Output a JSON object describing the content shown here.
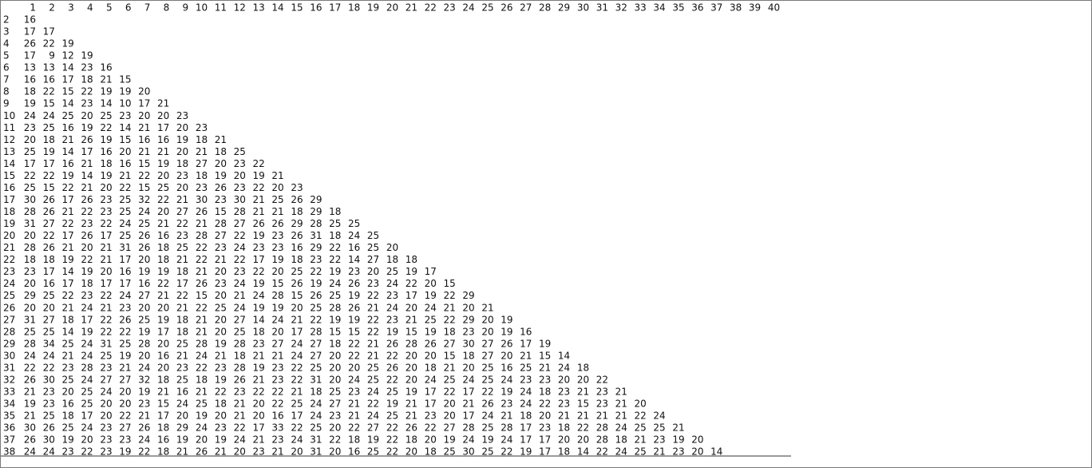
{
  "header": [
    1,
    2,
    3,
    4,
    5,
    6,
    7,
    8,
    9,
    10,
    11,
    12,
    13,
    14,
    15,
    16,
    17,
    18,
    19,
    20,
    21,
    22,
    23,
    24,
    25,
    26,
    27,
    28,
    29,
    30,
    31,
    32,
    33,
    34,
    35,
    36,
    37,
    38,
    39,
    40
  ],
  "rows": [
    {
      "label": 2,
      "values": [
        16
      ]
    },
    {
      "label": 3,
      "values": [
        17,
        17
      ]
    },
    {
      "label": 4,
      "values": [
        26,
        22,
        19
      ]
    },
    {
      "label": 5,
      "values": [
        17,
        9,
        12,
        19
      ]
    },
    {
      "label": 6,
      "values": [
        13,
        13,
        14,
        23,
        16
      ]
    },
    {
      "label": 7,
      "values": [
        16,
        16,
        17,
        18,
        21,
        15
      ]
    },
    {
      "label": 8,
      "values": [
        18,
        22,
        15,
        22,
        19,
        19,
        20
      ]
    },
    {
      "label": 9,
      "values": [
        19,
        15,
        14,
        23,
        14,
        10,
        17,
        21
      ]
    },
    {
      "label": 10,
      "values": [
        24,
        24,
        25,
        20,
        25,
        23,
        20,
        20,
        23
      ]
    },
    {
      "label": 11,
      "values": [
        23,
        25,
        16,
        19,
        22,
        14,
        21,
        17,
        20,
        23
      ]
    },
    {
      "label": 12,
      "values": [
        20,
        18,
        21,
        26,
        19,
        15,
        16,
        16,
        19,
        18,
        21
      ]
    },
    {
      "label": 13,
      "values": [
        25,
        19,
        14,
        17,
        16,
        20,
        21,
        21,
        20,
        21,
        18,
        25
      ]
    },
    {
      "label": 14,
      "values": [
        17,
        17,
        16,
        21,
        18,
        16,
        15,
        19,
        18,
        27,
        20,
        23,
        22
      ]
    },
    {
      "label": 15,
      "values": [
        22,
        22,
        19,
        14,
        19,
        21,
        22,
        20,
        23,
        18,
        19,
        20,
        19,
        21
      ]
    },
    {
      "label": 16,
      "values": [
        25,
        15,
        22,
        21,
        20,
        22,
        15,
        25,
        20,
        23,
        26,
        23,
        22,
        20,
        23
      ]
    },
    {
      "label": 17,
      "values": [
        30,
        26,
        17,
        26,
        23,
        25,
        32,
        22,
        21,
        30,
        23,
        30,
        21,
        25,
        26,
        29
      ]
    },
    {
      "label": 18,
      "values": [
        28,
        26,
        21,
        22,
        23,
        25,
        24,
        20,
        27,
        26,
        15,
        28,
        21,
        21,
        18,
        29,
        18
      ]
    },
    {
      "label": 19,
      "values": [
        31,
        27,
        22,
        23,
        22,
        24,
        25,
        21,
        22,
        21,
        28,
        27,
        26,
        26,
        29,
        28,
        25,
        25
      ]
    },
    {
      "label": 20,
      "values": [
        20,
        22,
        17,
        26,
        17,
        25,
        26,
        16,
        23,
        28,
        27,
        22,
        19,
        23,
        26,
        31,
        18,
        24,
        25
      ]
    },
    {
      "label": 21,
      "values": [
        28,
        26,
        21,
        20,
        21,
        31,
        26,
        18,
        25,
        22,
        23,
        24,
        23,
        23,
        16,
        29,
        22,
        16,
        25,
        20
      ]
    },
    {
      "label": 22,
      "values": [
        18,
        18,
        19,
        22,
        21,
        17,
        20,
        18,
        21,
        22,
        21,
        22,
        17,
        19,
        18,
        23,
        22,
        14,
        27,
        18,
        18
      ]
    },
    {
      "label": 23,
      "values": [
        23,
        17,
        14,
        19,
        20,
        16,
        19,
        19,
        18,
        21,
        20,
        23,
        22,
        20,
        25,
        22,
        19,
        23,
        20,
        25,
        19,
        17
      ]
    },
    {
      "label": 24,
      "values": [
        20,
        16,
        17,
        18,
        17,
        17,
        16,
        22,
        17,
        26,
        23,
        24,
        19,
        15,
        26,
        19,
        24,
        26,
        23,
        24,
        22,
        20,
        15
      ]
    },
    {
      "label": 25,
      "values": [
        29,
        25,
        22,
        23,
        22,
        24,
        27,
        21,
        22,
        15,
        20,
        21,
        24,
        28,
        15,
        26,
        25,
        19,
        22,
        23,
        17,
        19,
        22,
        29
      ]
    },
    {
      "label": 26,
      "values": [
        20,
        20,
        21,
        24,
        21,
        23,
        20,
        20,
        21,
        22,
        25,
        24,
        19,
        19,
        20,
        25,
        28,
        26,
        21,
        24,
        20,
        24,
        21,
        20,
        21
      ]
    },
    {
      "label": 27,
      "values": [
        31,
        27,
        18,
        17,
        22,
        26,
        25,
        19,
        18,
        21,
        20,
        27,
        14,
        24,
        21,
        22,
        19,
        19,
        22,
        23,
        21,
        25,
        22,
        29,
        20,
        19
      ]
    },
    {
      "label": 28,
      "values": [
        25,
        25,
        14,
        19,
        22,
        22,
        19,
        17,
        18,
        21,
        20,
        25,
        18,
        20,
        17,
        28,
        15,
        15,
        22,
        19,
        15,
        19,
        18,
        23,
        20,
        19,
        16
      ]
    },
    {
      "label": 29,
      "values": [
        28,
        34,
        25,
        24,
        31,
        25,
        28,
        20,
        25,
        28,
        19,
        28,
        23,
        27,
        24,
        27,
        18,
        22,
        21,
        26,
        28,
        26,
        27,
        30,
        27,
        26,
        17,
        19
      ]
    },
    {
      "label": 30,
      "values": [
        24,
        24,
        21,
        24,
        25,
        19,
        20,
        16,
        21,
        24,
        21,
        18,
        21,
        21,
        24,
        27,
        20,
        22,
        21,
        22,
        20,
        20,
        15,
        18,
        27,
        20,
        21,
        15,
        14
      ]
    },
    {
      "label": 31,
      "values": [
        22,
        22,
        23,
        28,
        23,
        21,
        24,
        20,
        23,
        22,
        23,
        28,
        19,
        23,
        22,
        25,
        20,
        20,
        25,
        26,
        20,
        18,
        21,
        20,
        25,
        16,
        25,
        21,
        24,
        18
      ]
    },
    {
      "label": 32,
      "values": [
        26,
        30,
        25,
        24,
        27,
        27,
        32,
        18,
        25,
        18,
        19,
        26,
        21,
        23,
        22,
        31,
        20,
        24,
        25,
        22,
        20,
        24,
        25,
        24,
        25,
        24,
        23,
        23,
        20,
        20,
        22
      ]
    },
    {
      "label": 33,
      "values": [
        21,
        23,
        20,
        25,
        24,
        20,
        19,
        21,
        16,
        21,
        22,
        23,
        22,
        22,
        21,
        18,
        25,
        23,
        24,
        25,
        19,
        17,
        22,
        17,
        22,
        19,
        24,
        18,
        23,
        21,
        23,
        21
      ]
    },
    {
      "label": 34,
      "values": [
        19,
        23,
        16,
        25,
        20,
        20,
        23,
        15,
        24,
        25,
        18,
        21,
        20,
        22,
        25,
        24,
        27,
        21,
        22,
        19,
        21,
        17,
        20,
        21,
        26,
        23,
        24,
        22,
        23,
        15,
        23,
        21,
        20
      ]
    },
    {
      "label": 35,
      "values": [
        21,
        25,
        18,
        17,
        20,
        22,
        21,
        17,
        20,
        19,
        20,
        21,
        20,
        16,
        17,
        24,
        23,
        21,
        24,
        25,
        21,
        23,
        20,
        17,
        24,
        21,
        18,
        20,
        21,
        21,
        21,
        21,
        22,
        24
      ]
    },
    {
      "label": 36,
      "values": [
        30,
        26,
        25,
        24,
        23,
        27,
        26,
        18,
        29,
        24,
        23,
        22,
        17,
        33,
        22,
        25,
        20,
        22,
        27,
        22,
        26,
        22,
        27,
        28,
        25,
        28,
        17,
        23,
        18,
        22,
        28,
        24,
        25,
        25,
        21
      ]
    },
    {
      "label": 37,
      "values": [
        26,
        30,
        19,
        20,
        23,
        23,
        24,
        16,
        19,
        20,
        19,
        24,
        21,
        23,
        24,
        31,
        22,
        18,
        19,
        22,
        18,
        20,
        19,
        24,
        19,
        24,
        17,
        17,
        20,
        20,
        28,
        18,
        21,
        23,
        19,
        20
      ]
    },
    {
      "label": 38,
      "values": [
        24,
        24,
        23,
        22,
        23,
        19,
        22,
        18,
        21,
        26,
        21,
        20,
        23,
        21,
        20,
        31,
        20,
        16,
        25,
        22,
        20,
        18,
        25,
        30,
        25,
        22,
        19,
        17,
        18,
        14,
        22,
        24,
        25,
        21,
        23,
        20,
        14
      ]
    }
  ]
}
